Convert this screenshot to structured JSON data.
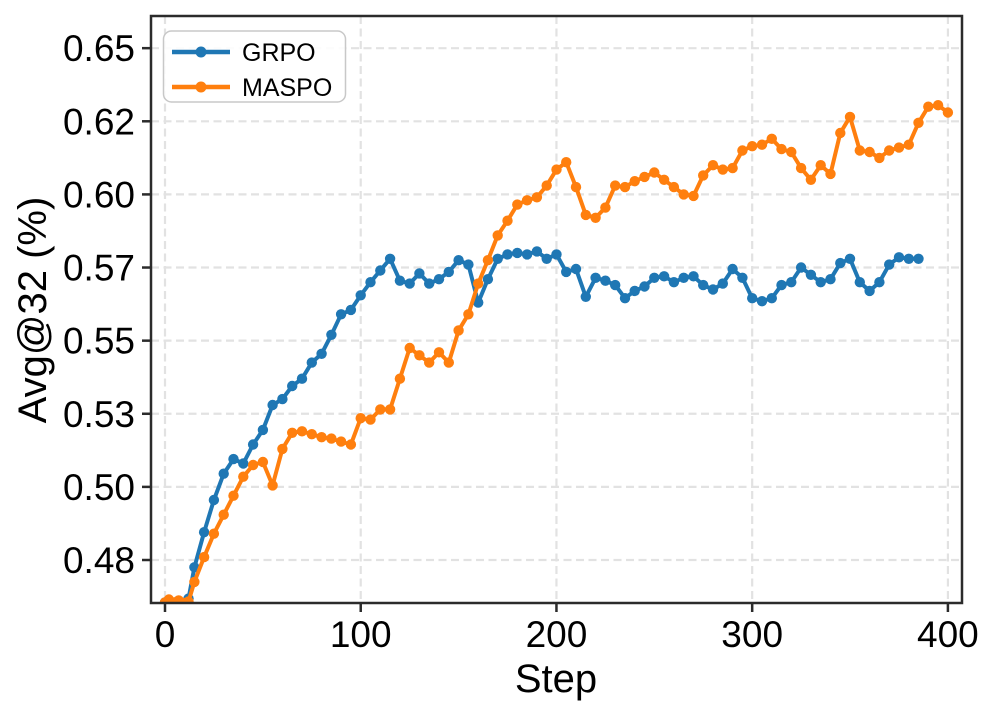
{
  "figure": {
    "background": "#ffffff",
    "frame_color": "#2b2b2b",
    "grid_color": "#e2e2e2",
    "text_color": "#000000"
  },
  "chart_data": {
    "type": "line",
    "title": "",
    "xlabel": "Step",
    "ylabel": "Avg@32 (%)",
    "xlim": [
      -7.15,
      407.2
    ],
    "ylim": [
      0.4603,
      0.661
    ],
    "grid": true,
    "legend_position": "upper left",
    "x_ticks": {
      "values": [
        0,
        100,
        200,
        300,
        400
      ],
      "labels": [
        "0",
        "100",
        "200",
        "300",
        "400"
      ]
    },
    "y_ticks": {
      "values": [
        0.475,
        0.5,
        0.525,
        0.55,
        0.575,
        0.6,
        0.625,
        0.65
      ],
      "labels": [
        "0.48",
        "0.50",
        "0.53",
        "0.55",
        "0.57",
        "0.60",
        "0.62",
        "0.65"
      ]
    },
    "series": [
      {
        "name": "GRPO",
        "color": "#1f77b4",
        "x": [
          0,
          2,
          5,
          7,
          10,
          12,
          15,
          20,
          25,
          30,
          35,
          40,
          45,
          50,
          55,
          60,
          65,
          70,
          75,
          80,
          85,
          90,
          95,
          100,
          105,
          110,
          115,
          120,
          125,
          130,
          135,
          140,
          145,
          150,
          155,
          160,
          165,
          170,
          175,
          180,
          185,
          190,
          195,
          200,
          205,
          210,
          215,
          220,
          225,
          230,
          235,
          240,
          245,
          250,
          255,
          260,
          265,
          270,
          275,
          280,
          285,
          290,
          295,
          300,
          305,
          310,
          315,
          320,
          325,
          330,
          335,
          340,
          345,
          350,
          355,
          360,
          365,
          370,
          375,
          380,
          385
        ],
        "y": [
          0.4605,
          0.4612,
          0.4605,
          0.461,
          0.4604,
          0.4618,
          0.4725,
          0.4845,
          0.4955,
          0.5045,
          0.5095,
          0.508,
          0.5145,
          0.5195,
          0.528,
          0.53,
          0.5345,
          0.537,
          0.5425,
          0.5455,
          0.552,
          0.559,
          0.5605,
          0.5655,
          0.57,
          0.574,
          0.578,
          0.5705,
          0.5695,
          0.573,
          0.5695,
          0.571,
          0.5735,
          0.5775,
          0.576,
          0.563,
          0.571,
          0.578,
          0.5795,
          0.58,
          0.5795,
          0.5805,
          0.578,
          0.5795,
          0.5735,
          0.5745,
          0.565,
          0.5715,
          0.5705,
          0.569,
          0.5645,
          0.567,
          0.5685,
          0.5715,
          0.572,
          0.57,
          0.5715,
          0.572,
          0.569,
          0.5675,
          0.5695,
          0.5745,
          0.5715,
          0.5645,
          0.5635,
          0.5645,
          0.569,
          0.57,
          0.575,
          0.5725,
          0.57,
          0.571,
          0.5765,
          0.578,
          0.57,
          0.567,
          0.57,
          0.576,
          0.5785,
          0.578,
          0.578
        ]
      },
      {
        "name": "MASPO",
        "color": "#ff7f0e",
        "x": [
          0,
          2,
          5,
          7,
          10,
          12,
          15,
          20,
          25,
          30,
          35,
          40,
          45,
          50,
          55,
          60,
          65,
          70,
          75,
          80,
          85,
          90,
          95,
          100,
          105,
          110,
          115,
          120,
          125,
          130,
          135,
          140,
          145,
          150,
          155,
          160,
          165,
          170,
          175,
          180,
          185,
          190,
          195,
          200,
          205,
          210,
          215,
          220,
          225,
          230,
          235,
          240,
          245,
          250,
          255,
          260,
          265,
          270,
          275,
          280,
          285,
          290,
          295,
          300,
          305,
          310,
          315,
          320,
          325,
          330,
          335,
          340,
          345,
          350,
          355,
          360,
          365,
          370,
          375,
          380,
          385,
          390,
          395,
          400
        ],
        "y": [
          0.4605,
          0.4615,
          0.4605,
          0.4612,
          0.4603,
          0.4608,
          0.4675,
          0.476,
          0.484,
          0.4905,
          0.497,
          0.5035,
          0.5075,
          0.5085,
          0.5005,
          0.513,
          0.5185,
          0.519,
          0.518,
          0.517,
          0.5165,
          0.5155,
          0.5145,
          0.5235,
          0.523,
          0.5265,
          0.5265,
          0.537,
          0.5475,
          0.545,
          0.5425,
          0.546,
          0.5425,
          0.5535,
          0.559,
          0.5695,
          0.5775,
          0.586,
          0.591,
          0.5965,
          0.598,
          0.599,
          0.603,
          0.6085,
          0.611,
          0.6025,
          0.593,
          0.592,
          0.5955,
          0.603,
          0.6025,
          0.6045,
          0.606,
          0.6075,
          0.605,
          0.6025,
          0.6,
          0.5995,
          0.6065,
          0.61,
          0.6085,
          0.609,
          0.615,
          0.6165,
          0.617,
          0.619,
          0.6155,
          0.6145,
          0.609,
          0.605,
          0.61,
          0.607,
          0.621,
          0.6265,
          0.615,
          0.6145,
          0.6125,
          0.615,
          0.616,
          0.617,
          0.6245,
          0.63,
          0.6305,
          0.628
        ]
      }
    ]
  }
}
